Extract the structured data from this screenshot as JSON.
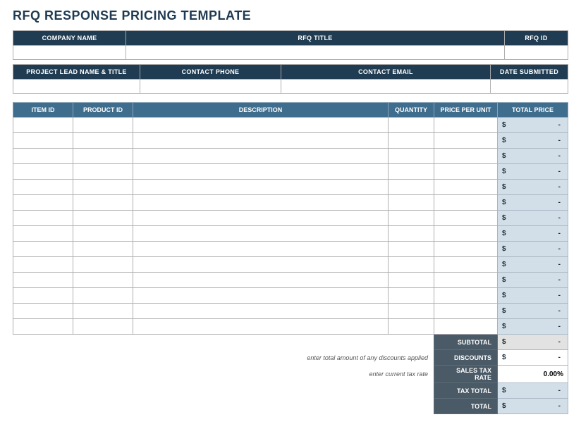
{
  "title": "RFQ RESPONSE PRICING TEMPLATE",
  "info1": {
    "company_name": {
      "label": "COMPANY NAME",
      "value": ""
    },
    "rfq_title": {
      "label": "RFQ TITLE",
      "value": ""
    },
    "rfq_id": {
      "label": "RFQ ID",
      "value": ""
    }
  },
  "info2": {
    "lead": {
      "label": "PROJECT LEAD NAME & TITLE",
      "value": ""
    },
    "phone": {
      "label": "CONTACT PHONE",
      "value": ""
    },
    "email": {
      "label": "CONTACT EMAIL",
      "value": ""
    },
    "date": {
      "label": "DATE SUBMITTED",
      "value": ""
    }
  },
  "columns": {
    "item_id": "ITEM ID",
    "product_id": "PRODUCT ID",
    "description": "DESCRIPTION",
    "quantity": "QUANTITY",
    "price_per_unit": "PRICE PER UNIT",
    "total_price": "TOTAL PRICE"
  },
  "currency_symbol": "$",
  "dash": "-",
  "row_count": 14,
  "summary": {
    "subtotal": {
      "label": "SUBTOTAL",
      "hint": "",
      "val_style": "lt"
    },
    "discounts": {
      "label": "DISCOUNTS",
      "hint": "enter total amount of any discounts applied",
      "val_style": "wh_dash"
    },
    "tax_rate": {
      "label": "SALES TAX RATE",
      "hint": "enter current tax rate",
      "value": "0.00%",
      "val_style": "wh_val"
    },
    "tax_total": {
      "label": "TAX TOTAL",
      "hint": "",
      "val_style": "norm"
    },
    "total": {
      "label": "TOTAL",
      "hint": "",
      "val_style": "norm"
    }
  },
  "colors": {
    "title": "#1f3a52",
    "header_bg": "#1f3c52",
    "table_head_bg": "#3e6d8e",
    "total_cell_bg": "#d3dfe8",
    "summary_label_bg": "#4a5a66",
    "grid_border": "#b0b0b0"
  }
}
